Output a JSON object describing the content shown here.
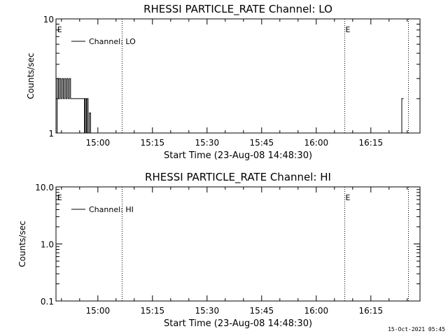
{
  "footer": {
    "timestamp": "15-Oct-2021 05:45"
  },
  "chart_data": [
    {
      "type": "line",
      "title": "RHESSI PARTICLE_RATE Channel: LO",
      "xlabel": "Start Time (23-Aug-08 14:48:30)",
      "ylabel": "Counts/sec",
      "y_scale": "log",
      "ylim": [
        1,
        10
      ],
      "y_ticks": [
        {
          "value": 1,
          "label": "1"
        },
        {
          "value": 10,
          "label": "10"
        }
      ],
      "xlim": [
        "14:48:30",
        "16:28:30"
      ],
      "x_ticks": [
        "15:00",
        "15:15",
        "15:30",
        "15:45",
        "16:00",
        "16:15"
      ],
      "legend": "top-left",
      "series": [
        {
          "name": "Channel: LO",
          "points": [
            [
              "14:48:40",
              1
            ],
            [
              "14:48:50",
              3
            ],
            [
              "14:49:10",
              2
            ],
            [
              "14:49:30",
              3
            ],
            [
              "14:49:50",
              2
            ],
            [
              "14:50:10",
              3
            ],
            [
              "14:50:30",
              2
            ],
            [
              "14:50:50",
              3
            ],
            [
              "14:51:10",
              2
            ],
            [
              "14:51:30",
              3
            ],
            [
              "14:51:50",
              2
            ],
            [
              "14:52:10",
              3
            ],
            [
              "14:52:30",
              2
            ],
            [
              "14:56:10",
              2
            ],
            [
              "14:56:20",
              1
            ],
            [
              "14:56:30",
              2
            ],
            [
              "14:56:50",
              1
            ],
            [
              "14:57:00",
              2
            ],
            [
              "14:57:20",
              1
            ],
            [
              "14:57:40",
              1.5
            ],
            [
              "14:58:00",
              1
            ]
          ]
        },
        {
          "name": "",
          "points": [
            [
              "16:23:10",
              1
            ],
            [
              "16:23:30",
              2
            ],
            [
              "16:24:00",
              2
            ]
          ]
        }
      ],
      "markers": [
        {
          "time": "14:48:50",
          "label": "E",
          "line": false
        },
        {
          "time": "15:06:40",
          "label": "",
          "line": true
        },
        {
          "time": "16:07:50",
          "label": "E",
          "line": true
        },
        {
          "time": "16:25:20",
          "label": "",
          "line": true
        }
      ]
    },
    {
      "type": "line",
      "title": "RHESSI PARTICLE_RATE Channel: HI",
      "xlabel": "Start Time (23-Aug-08 14:48:30)",
      "ylabel": "Counts/sec",
      "y_scale": "log",
      "ylim": [
        0.1,
        10
      ],
      "y_ticks": [
        {
          "value": 0.1,
          "label": "0.1"
        },
        {
          "value": 1,
          "label": "1.0"
        },
        {
          "value": 10,
          "label": "10.0"
        }
      ],
      "xlim": [
        "14:48:30",
        "16:28:30"
      ],
      "x_ticks": [
        "15:00",
        "15:15",
        "15:30",
        "15:45",
        "16:00",
        "16:15"
      ],
      "legend": "top-left",
      "series": [
        {
          "name": "Channel: HI",
          "points": []
        }
      ],
      "markers": [
        {
          "time": "14:48:50",
          "label": "E",
          "line": false
        },
        {
          "time": "15:06:40",
          "label": "",
          "line": true
        },
        {
          "time": "16:07:50",
          "label": "E",
          "line": true
        },
        {
          "time": "16:25:20",
          "label": "",
          "line": true
        }
      ]
    }
  ]
}
